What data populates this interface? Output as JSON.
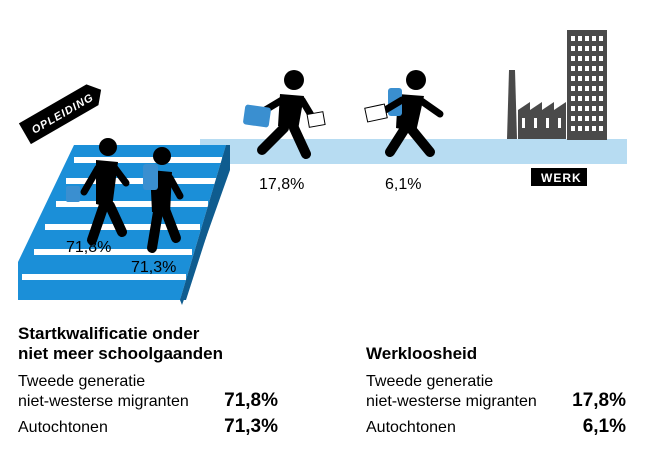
{
  "labels": {
    "opleiding": "OPLEIDING",
    "werk": "WERK"
  },
  "figure_values": {
    "stairs_migrants": "71,8%",
    "stairs_native": "71,3%",
    "walk_migrants": "17,8%",
    "walk_native": "6,1%"
  },
  "left_section": {
    "title_line1": "Startkwalificatie onder",
    "title_line2": "niet meer schoolgaanden",
    "rows": [
      {
        "label_line1": "Tweede generatie",
        "label_line2": "niet-westerse migranten",
        "value": "71,8%"
      },
      {
        "label_line1": "Autochtonen",
        "label_line2": "",
        "value": "71,3%"
      }
    ]
  },
  "right_section": {
    "title": "Werkloosheid",
    "rows": [
      {
        "label_line1": "Tweede generatie",
        "label_line2": "niet-westerse migranten",
        "value": "17,8%"
      },
      {
        "label_line1": "Autochtonen",
        "label_line2": "",
        "value": "6,1%"
      }
    ]
  },
  "colors": {
    "stair_blue": "#1b8fd8",
    "path_blue": "#b7dcf2",
    "bag_blue": "#3a8fd0",
    "building_gray": "#4a4a4a"
  }
}
